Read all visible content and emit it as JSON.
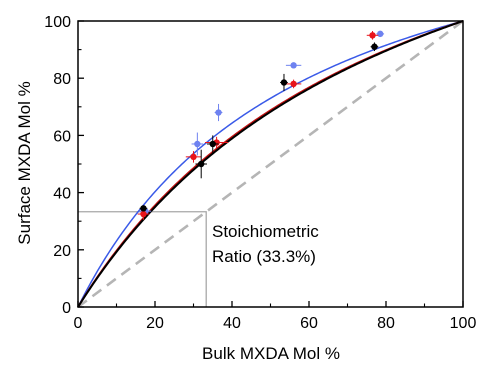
{
  "chart_data": {
    "type": "scatter",
    "xlabel": "Bulk MXDA Mol %",
    "ylabel": "Surface MXDA Mol %",
    "xlim": [
      0,
      100
    ],
    "ylim": [
      0,
      100
    ],
    "xticks": [
      "0",
      "20",
      "40",
      "60",
      "80",
      "100"
    ],
    "yticks": [
      "0",
      "20",
      "40",
      "60",
      "80",
      "100"
    ],
    "grid": false,
    "annotation": {
      "lines": [
        "Stoichiometric",
        "Ratio (33.3%)"
      ],
      "x": 33.3,
      "y": 33.3
    },
    "series": [
      {
        "color": "#6e82f0",
        "points": [
          {
            "x": 17.5,
            "y": 33.5,
            "xerr": 1.5,
            "yerr": 1.5
          },
          {
            "x": 31,
            "y": 57,
            "xerr": 1.5,
            "yerr": 4
          },
          {
            "x": 36.5,
            "y": 68,
            "xerr": 1,
            "yerr": 3
          },
          {
            "x": 56,
            "y": 84.5,
            "xerr": 2,
            "yerr": 1
          },
          {
            "x": 78.5,
            "y": 95.5,
            "xerr": 1,
            "yerr": 0.5
          }
        ]
      },
      {
        "color": "#e8141b",
        "points": [
          {
            "x": 17,
            "y": 32.5,
            "xerr": 1.5,
            "yerr": 2
          },
          {
            "x": 30,
            "y": 52.5,
            "xerr": 2,
            "yerr": 2
          },
          {
            "x": 36,
            "y": 57.5,
            "xerr": 3,
            "yerr": 2
          },
          {
            "x": 56,
            "y": 78,
            "xerr": 2,
            "yerr": 1.5
          },
          {
            "x": 76.5,
            "y": 95,
            "xerr": 1.5,
            "yerr": 1.5
          }
        ]
      },
      {
        "color": "#000000",
        "points": [
          {
            "x": 17,
            "y": 34.5,
            "xerr": 1,
            "yerr": 1
          },
          {
            "x": 32,
            "y": 50,
            "xerr": 1.5,
            "yerr": 5
          },
          {
            "x": 35,
            "y": 57,
            "xerr": 1.5,
            "yerr": 3
          },
          {
            "x": 53.5,
            "y": 78.5,
            "xerr": 1,
            "yerr": 3
          },
          {
            "x": 77,
            "y": 91,
            "xerr": 1,
            "yerr": 1.5
          }
        ]
      }
    ],
    "fits": [
      {
        "color": "#3a5ae8",
        "k": 2.7
      },
      {
        "color": "#c01010",
        "k": 2.2
      },
      {
        "color": "#000000",
        "k": 2.15
      }
    ],
    "reference_line": {
      "color": "#b5b5b5",
      "dashed": true
    }
  }
}
